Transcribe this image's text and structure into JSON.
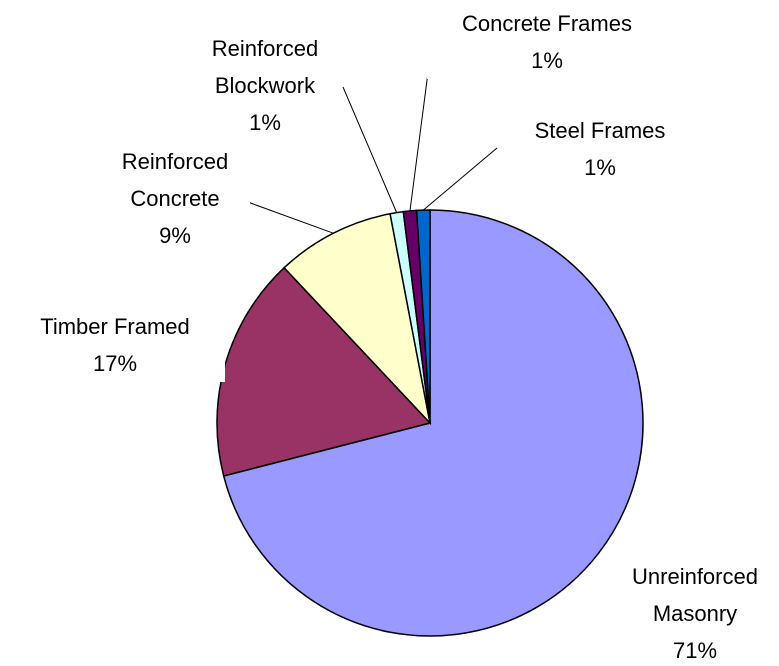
{
  "chart_data": {
    "type": "pie",
    "categories": [
      "Unreinforced Masonry",
      "Timber Framed",
      "Reinforced Concrete",
      "Reinforced Blockwork",
      "Concrete Frames",
      "Steel Frames"
    ],
    "values": [
      71,
      17,
      9,
      1,
      1,
      1
    ],
    "value_labels": [
      "71%",
      "17%",
      "9%",
      "1%",
      "1%",
      "1%"
    ],
    "colors": [
      "#9999ff",
      "#993366",
      "#ffffcc",
      "#ccffff",
      "#660066",
      "#0066cc"
    ]
  }
}
